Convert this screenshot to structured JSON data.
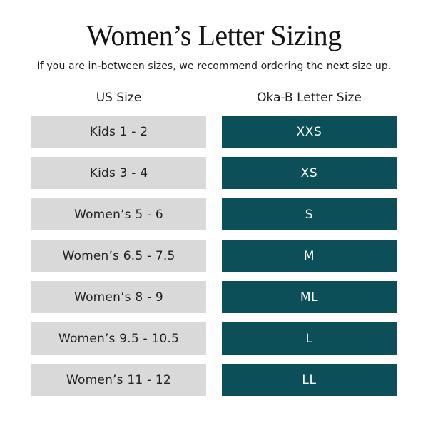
{
  "page": {
    "title": "Women’s Letter Sizing",
    "subtitle": "If you are in-between sizes, we recommend ordering the next size up."
  },
  "table": {
    "columns": {
      "us": "US Size",
      "letter": "Oka-B Letter Size"
    },
    "rows": [
      {
        "us_size": "Kids 1 - 2",
        "letter_size": "XXS"
      },
      {
        "us_size": "Kids 3 - 4",
        "letter_size": "XS"
      },
      {
        "us_size": "Women’s 5 - 6",
        "letter_size": "S"
      },
      {
        "us_size": "Women’s 6.5 - 7.5",
        "letter_size": "M"
      },
      {
        "us_size": "Women’s 8 - 9",
        "letter_size": "ML"
      },
      {
        "us_size": "Women’s 9.5 - 10.5",
        "letter_size": "L"
      },
      {
        "us_size": "Women’s 11 - 12",
        "letter_size": "LL"
      }
    ]
  },
  "colors": {
    "letter_cell_background": "#0d4f58",
    "us_cell_background": "#d9d9d9",
    "letter_cell_text": "#ffffff",
    "heading_text": "#141414"
  },
  "chart_data": {
    "type": "table",
    "title": "Women’s Letter Sizing",
    "subtitle": "If you are in-between sizes, we recommend ordering the next size up.",
    "columns": [
      "US Size",
      "Oka-B Letter Size"
    ],
    "rows": [
      [
        "Kids 1 - 2",
        "XXS"
      ],
      [
        "Kids 3 - 4",
        "XS"
      ],
      [
        "Women’s 5 - 6",
        "S"
      ],
      [
        "Women’s 6.5 - 7.5",
        "M"
      ],
      [
        "Women’s 8 - 9",
        "ML"
      ],
      [
        "Women’s 9.5 - 10.5",
        "L"
      ],
      [
        "Women’s 11 - 12",
        "LL"
      ]
    ],
    "layout_hints": {
      "us_size_cells": "light gray #d9d9d9, dark text, centered",
      "letter_size_cells": "dark teal #0d4f58, white text, centered",
      "grid": "off",
      "legend": "none"
    }
  }
}
